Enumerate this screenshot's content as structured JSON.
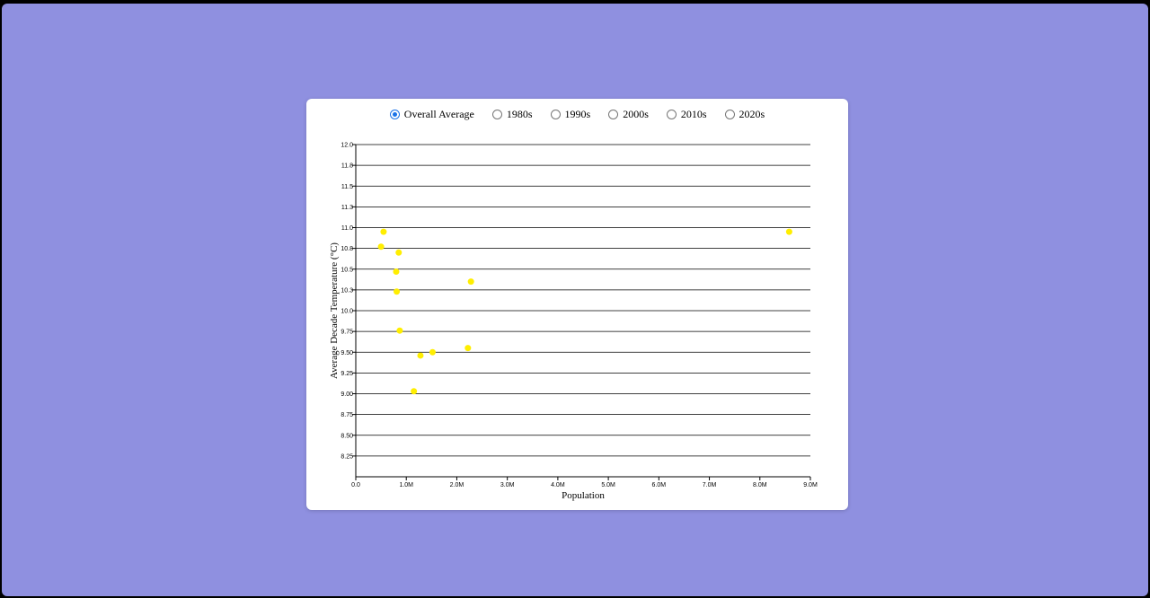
{
  "radio_options": [
    {
      "label": "Overall Average",
      "checked": true
    },
    {
      "label": "1980s",
      "checked": false
    },
    {
      "label": "1990s",
      "checked": false
    },
    {
      "label": "2000s",
      "checked": false
    },
    {
      "label": "2010s",
      "checked": false
    },
    {
      "label": "2020s",
      "checked": false
    }
  ],
  "colors": {
    "background": "#8f90e0",
    "card": "#ffffff",
    "point": "#ffee00",
    "radio_accent": "#1a73e8"
  },
  "chart_data": {
    "type": "scatter",
    "xlabel": "Population",
    "ylabel": "Average Decade Temperature (°C)",
    "xlim": [
      0,
      9000000
    ],
    "ylim": [
      8.0,
      12.0
    ],
    "x_ticks": [
      0,
      1000000,
      2000000,
      3000000,
      4000000,
      5000000,
      6000000,
      7000000,
      8000000,
      9000000
    ],
    "x_tick_labels": [
      "0.0",
      "1.0M",
      "2.0M",
      "3.0M",
      "4.0M",
      "5.0M",
      "6.0M",
      "7.0M",
      "8.0M",
      "9.0M"
    ],
    "y_ticks": [
      8.25,
      8.5,
      8.75,
      9.0,
      9.25,
      9.5,
      9.75,
      10.0,
      10.25,
      10.5,
      10.75,
      11.0,
      11.25,
      11.5,
      11.75,
      12.0
    ],
    "y_tick_labels": [
      "8.25",
      "8.50",
      "8.75",
      "9.00",
      "9.25",
      "9.50",
      "9.75",
      "10.0",
      "10.3",
      "10.5",
      "10.8",
      "11.0",
      "11.3",
      "11.5",
      "11.8",
      "12.0"
    ],
    "grid": true,
    "series": [
      {
        "points": [
          {
            "x": 550000,
            "y": 10.95
          },
          {
            "x": 500000,
            "y": 10.77
          },
          {
            "x": 850000,
            "y": 10.7
          },
          {
            "x": 800000,
            "y": 10.47
          },
          {
            "x": 810000,
            "y": 10.23
          },
          {
            "x": 870000,
            "y": 9.76
          },
          {
            "x": 1280000,
            "y": 9.46
          },
          {
            "x": 1520000,
            "y": 9.5
          },
          {
            "x": 1150000,
            "y": 9.03
          },
          {
            "x": 2280000,
            "y": 10.35
          },
          {
            "x": 2220000,
            "y": 9.55
          },
          {
            "x": 8580000,
            "y": 10.95
          }
        ]
      }
    ]
  }
}
